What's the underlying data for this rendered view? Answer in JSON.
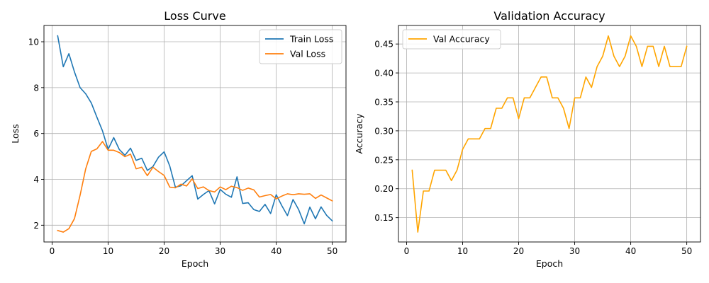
{
  "chart_data": [
    {
      "type": "line",
      "title": "Loss Curve",
      "xlabel": "Epoch",
      "ylabel": "Loss",
      "xlim": [
        -1.45,
        52.45
      ],
      "ylim": [
        1.27,
        10.71
      ],
      "xticks": [
        0,
        10,
        20,
        30,
        40,
        50
      ],
      "yticks": [
        2,
        4,
        6,
        8,
        10
      ],
      "grid": true,
      "legend": "top-right",
      "x": [
        1,
        2,
        3,
        4,
        5,
        6,
        7,
        8,
        9,
        10,
        11,
        12,
        13,
        14,
        15,
        16,
        17,
        18,
        19,
        20,
        21,
        22,
        23,
        24,
        25,
        26,
        27,
        28,
        29,
        30,
        31,
        32,
        33,
        34,
        35,
        36,
        37,
        38,
        39,
        40,
        41,
        42,
        43,
        44,
        45,
        46,
        47,
        48,
        49,
        50
      ],
      "series": [
        {
          "name": "Train Loss",
          "color": "#1f77b4",
          "values": [
            10.26,
            8.91,
            9.48,
            8.68,
            8.0,
            7.73,
            7.33,
            6.71,
            6.11,
            5.31,
            5.82,
            5.3,
            5.05,
            5.36,
            4.83,
            4.92,
            4.39,
            4.56,
            4.97,
            5.2,
            4.58,
            3.66,
            3.72,
            3.94,
            4.16,
            3.14,
            3.34,
            3.51,
            2.93,
            3.56,
            3.35,
            3.22,
            4.11,
            2.95,
            2.98,
            2.68,
            2.6,
            2.91,
            2.51,
            3.33,
            2.85,
            2.42,
            3.12,
            2.68,
            2.06,
            2.79,
            2.28,
            2.8,
            2.43,
            2.19
          ]
        },
        {
          "name": "Val Loss",
          "color": "#ff7f0e",
          "values": [
            1.77,
            1.7,
            1.85,
            2.29,
            3.31,
            4.46,
            5.22,
            5.33,
            5.65,
            5.27,
            5.27,
            5.17,
            4.99,
            5.1,
            4.46,
            4.53,
            4.16,
            4.53,
            4.34,
            4.17,
            3.66,
            3.63,
            3.79,
            3.71,
            4.02,
            3.6,
            3.67,
            3.51,
            3.45,
            3.67,
            3.55,
            3.7,
            3.64,
            3.52,
            3.62,
            3.54,
            3.23,
            3.29,
            3.34,
            3.15,
            3.27,
            3.37,
            3.33,
            3.37,
            3.35,
            3.37,
            3.17,
            3.32,
            3.19,
            3.06
          ]
        }
      ]
    },
    {
      "type": "line",
      "title": "Validation Accuracy",
      "xlabel": "Epoch",
      "ylabel": "Accuracy",
      "xlim": [
        -1.45,
        52.45
      ],
      "ylim": [
        0.108,
        0.482
      ],
      "xticks": [
        0,
        10,
        20,
        30,
        40,
        50
      ],
      "yticks": [
        0.15,
        0.2,
        0.25,
        0.3,
        0.35,
        0.4,
        0.45
      ],
      "yticklabels": [
        "0.15",
        "0.20",
        "0.25",
        "0.30",
        "0.35",
        "0.40",
        "0.45"
      ],
      "grid": true,
      "legend": "top-left",
      "x": [
        1,
        2,
        3,
        4,
        5,
        6,
        7,
        8,
        9,
        10,
        11,
        12,
        13,
        14,
        15,
        16,
        17,
        18,
        19,
        20,
        21,
        22,
        23,
        24,
        25,
        26,
        27,
        28,
        29,
        30,
        31,
        32,
        33,
        34,
        35,
        36,
        37,
        38,
        39,
        40,
        41,
        42,
        43,
        44,
        45,
        46,
        47,
        48,
        49,
        50
      ],
      "series": [
        {
          "name": "Val Accuracy",
          "color": "#ffa500",
          "values": [
            0.232,
            0.125,
            0.196,
            0.196,
            0.232,
            0.232,
            0.232,
            0.214,
            0.232,
            0.268,
            0.286,
            0.286,
            0.286,
            0.304,
            0.304,
            0.339,
            0.339,
            0.357,
            0.357,
            0.321,
            0.357,
            0.357,
            0.375,
            0.393,
            0.393,
            0.357,
            0.357,
            0.339,
            0.304,
            0.357,
            0.357,
            0.393,
            0.375,
            0.411,
            0.429,
            0.464,
            0.429,
            0.411,
            0.429,
            0.464,
            0.446,
            0.411,
            0.446,
            0.446,
            0.411,
            0.446,
            0.411,
            0.411,
            0.411,
            0.446
          ]
        }
      ]
    }
  ]
}
